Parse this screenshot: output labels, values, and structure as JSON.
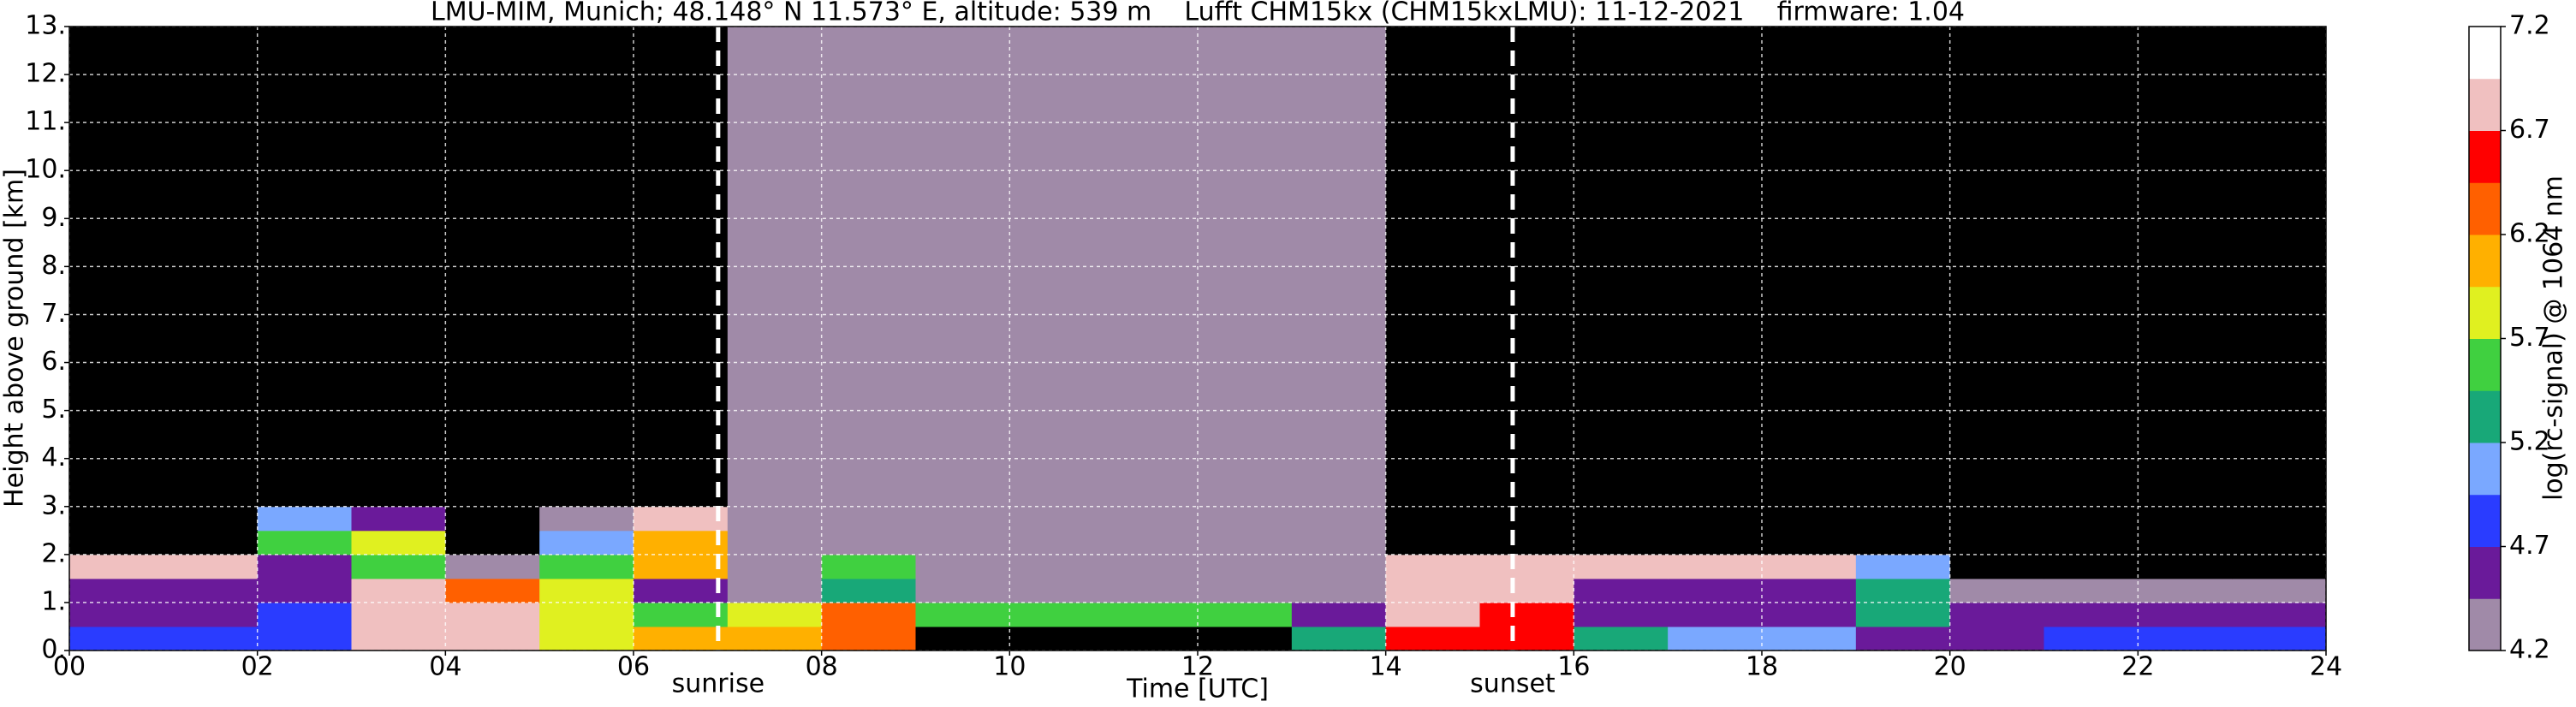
{
  "chart_data": {
    "type": "heatmap",
    "title": "LMU-MIM, Munich; 48.148° N 11.573° E, altitude: 539 m    Lufft CHM15kx (CHM15kxLMU): 11-12-2021    firmware: 1.04",
    "xlabel": "Time [UTC]",
    "ylabel": "Height above ground [km]",
    "colorbar_label": "log(rc-signal) @ 1064 nm",
    "xlim": [
      0,
      24
    ],
    "ylim": [
      0,
      13
    ],
    "xticks": [
      {
        "value": 0,
        "label": "00"
      },
      {
        "value": 2,
        "label": "02"
      },
      {
        "value": 4,
        "label": "04"
      },
      {
        "value": 6,
        "label": "06"
      },
      {
        "value": 8,
        "label": "08"
      },
      {
        "value": 10,
        "label": "10"
      },
      {
        "value": 12,
        "label": "12"
      },
      {
        "value": 14,
        "label": "14"
      },
      {
        "value": 16,
        "label": "16"
      },
      {
        "value": 18,
        "label": "18"
      },
      {
        "value": 20,
        "label": "20"
      },
      {
        "value": 22,
        "label": "22"
      },
      {
        "value": 24,
        "label": "24"
      }
    ],
    "yticks": [
      {
        "value": 0,
        "label": "0."
      },
      {
        "value": 1,
        "label": "1."
      },
      {
        "value": 2,
        "label": "2."
      },
      {
        "value": 3,
        "label": "3."
      },
      {
        "value": 4,
        "label": "4."
      },
      {
        "value": 5,
        "label": "5."
      },
      {
        "value": 6,
        "label": "6."
      },
      {
        "value": 7,
        "label": "7."
      },
      {
        "value": 8,
        "label": "8."
      },
      {
        "value": 9,
        "label": "9."
      },
      {
        "value": 10,
        "label": "10."
      },
      {
        "value": 11,
        "label": "11."
      },
      {
        "value": 12,
        "label": "12."
      },
      {
        "value": 13,
        "label": "13."
      }
    ],
    "grid": true,
    "zlim": [
      4.2,
      7.2
    ],
    "zticks": [
      4.2,
      4.7,
      5.2,
      5.7,
      6.2,
      6.7,
      7.2
    ],
    "colors": [
      "#a08aa8",
      "#6a1a9a",
      "#2a3cff",
      "#7aa8ff",
      "#18a878",
      "#40d040",
      "#e0f020",
      "#ffb000",
      "#ff6000",
      "#ff0000",
      "#f0c0c0",
      "#ffffff"
    ],
    "under_color": "#000000",
    "x_bins": [
      0,
      1,
      2,
      3,
      4,
      5,
      6,
      7,
      8,
      9,
      10,
      11,
      12,
      13,
      14,
      15,
      16,
      17,
      18,
      19,
      20,
      21,
      22,
      23,
      24
    ],
    "y_bins": [
      0,
      0.5,
      1,
      1.5,
      2,
      2.5,
      3,
      13
    ],
    "z": [
      [
        4.9,
        4.9,
        4.9,
        6.8,
        6.8,
        5.8,
        6.1,
        6.0,
        6.4,
        4.0,
        4.0,
        4.0,
        4.0,
        5.3,
        6.6,
        6.5,
        5.2,
        5.1,
        5.0,
        4.6,
        4.6,
        4.8,
        4.9,
        4.9
      ],
      [
        4.6,
        4.6,
        4.7,
        6.9,
        6.7,
        5.9,
        5.6,
        5.8,
        6.2,
        5.5,
        5.5,
        5.5,
        5.5,
        4.5,
        6.9,
        6.6,
        4.6,
        4.6,
        4.6,
        5.2,
        4.5,
        4.6,
        4.6,
        4.5
      ],
      [
        4.5,
        4.5,
        4.5,
        6.8,
        6.2,
        5.7,
        4.5,
        4.3,
        5.4,
        4.4,
        4.4,
        4.4,
        4.4,
        4.4,
        6.8,
        6.8,
        4.6,
        4.6,
        4.6,
        5.3,
        4.4,
        4.4,
        4.4,
        4.4
      ],
      [
        6.9,
        6.9,
        4.5,
        5.5,
        4.3,
        5.6,
        6.0,
        4.3,
        5.5,
        4.3,
        4.3,
        4.3,
        4.3,
        4.3,
        6.7,
        6.9,
        6.9,
        6.9,
        6.9,
        5.0,
        4.0,
        4.0,
        4.0,
        4.0
      ],
      [
        4.0,
        4.0,
        5.6,
        5.8,
        4.0,
        5.0,
        6.0,
        4.3,
        4.3,
        4.3,
        4.3,
        4.3,
        4.3,
        4.3,
        4.0,
        4.0,
        4.0,
        4.0,
        4.0,
        4.0,
        4.0,
        4.0,
        4.0,
        4.0
      ],
      [
        4.0,
        4.0,
        5.0,
        4.5,
        4.0,
        4.4,
        6.8,
        4.3,
        4.3,
        4.3,
        4.3,
        4.3,
        4.3,
        4.3,
        4.0,
        4.0,
        4.0,
        4.0,
        4.0,
        4.0,
        4.0,
        4.0,
        4.0,
        4.0
      ],
      [
        4.0,
        4.0,
        4.0,
        4.0,
        4.0,
        4.0,
        4.0,
        4.3,
        4.3,
        4.3,
        4.3,
        4.3,
        4.3,
        4.3,
        4.0,
        4.0,
        4.0,
        4.0,
        4.0,
        4.0,
        4.0,
        4.0,
        4.0,
        4.0
      ]
    ],
    "annotations": [
      {
        "text": "sunrise",
        "x": 6.9
      },
      {
        "text": "sunset",
        "x": 15.35
      }
    ]
  }
}
